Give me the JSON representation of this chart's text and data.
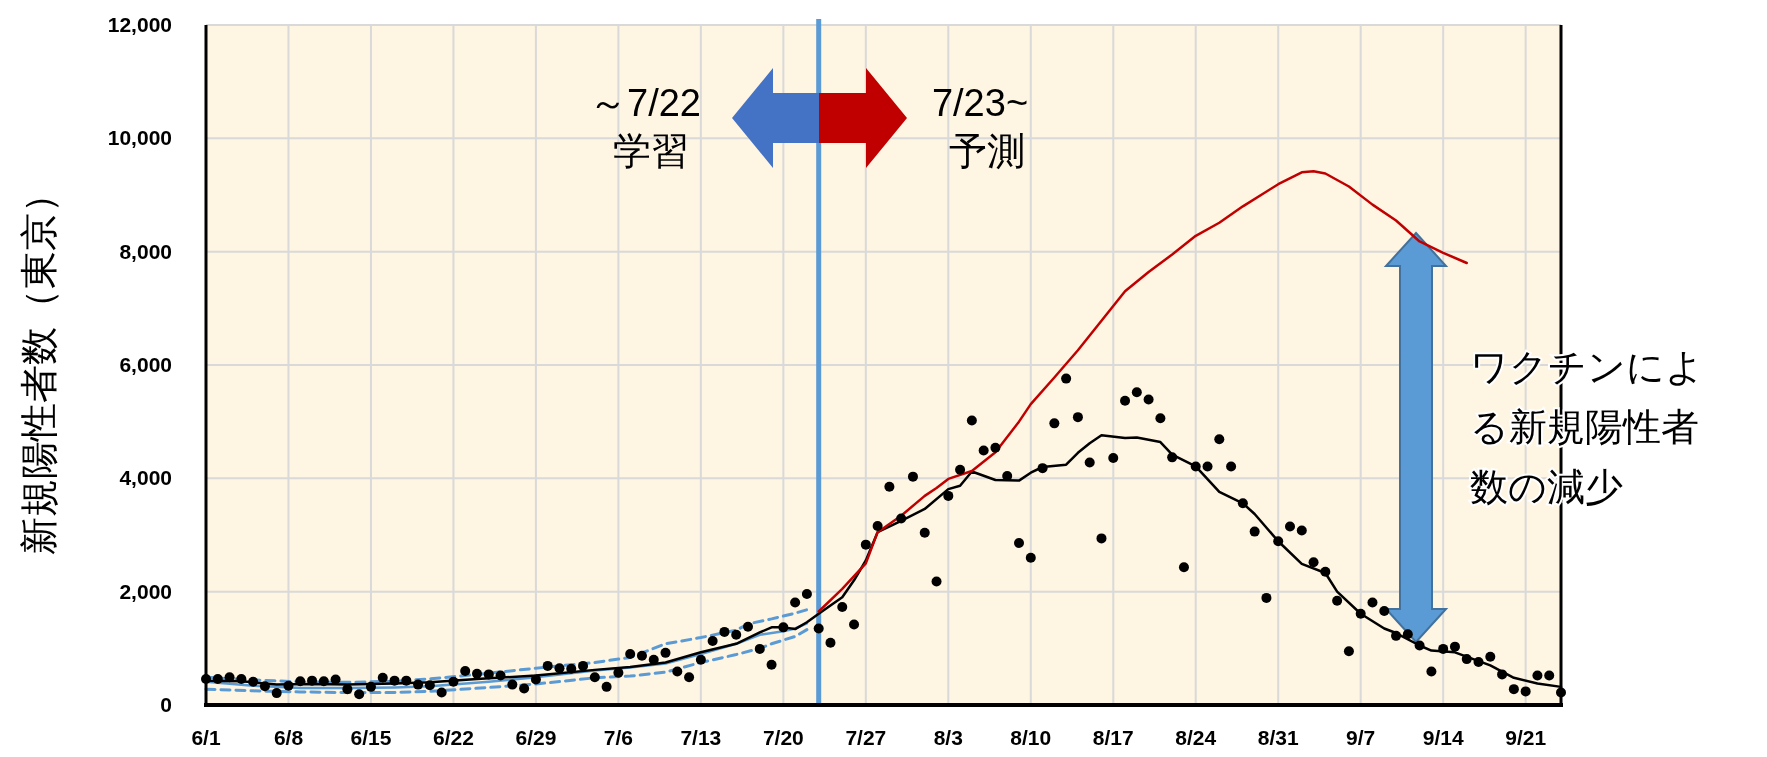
{
  "chart_data": {
    "type": "line",
    "ylabel": "新規陽性者数（東京）",
    "annotations": [
      "～7/22",
      "学習",
      "7/23~",
      "予測",
      "ワクチンによる新規陽性者数の減少"
    ],
    "xlim": [
      "--06-01",
      "--09-24"
    ],
    "xticks": [
      {
        "value": "--06-01",
        "label": "6/1"
      },
      {
        "value": "--06-08",
        "label": "6/8"
      },
      {
        "value": "--06-15",
        "label": "6/15"
      },
      {
        "value": "--06-22",
        "label": "6/22"
      },
      {
        "value": "--06-29",
        "label": "6/29"
      },
      {
        "value": "--07-06",
        "label": "7/6"
      },
      {
        "value": "--07-13",
        "label": "7/13"
      },
      {
        "value": "--07-20",
        "label": "7/20"
      },
      {
        "value": "--07-27",
        "label": "7/27"
      },
      {
        "value": "--08-03",
        "label": "8/3"
      },
      {
        "value": "--08-10",
        "label": "8/10"
      },
      {
        "value": "--08-17",
        "label": "8/17"
      },
      {
        "value": "--08-24",
        "label": "8/24"
      },
      {
        "value": "--08-31",
        "label": "8/31"
      },
      {
        "value": "--09-07",
        "label": "9/7"
      },
      {
        "value": "--09-14",
        "label": "9/14"
      },
      {
        "value": "--09-21",
        "label": "9/21"
      }
    ],
    "ylim": [
      0,
      12000
    ],
    "yticks": [
      0,
      {
        "value": 2000,
        "label": "2,000"
      },
      {
        "value": 4000,
        "label": "4,000"
      },
      {
        "value": 6000,
        "label": "6,000"
      },
      {
        "value": 8000,
        "label": "8,000"
      },
      {
        "value": 10000,
        "label": "10,000"
      },
      {
        "value": 12000,
        "label": "12,000"
      }
    ],
    "grid": true,
    "ref_lines": [
      {
        "axis": "x",
        "value": "--07-23",
        "color": "#5b9bd5"
      }
    ],
    "series": [
      {
        "type": "line",
        "color": "#5b9bd5",
        "line_style": "dashed",
        "marker": "none",
        "x": [
          "--06-01",
          "--06-05",
          "--06-09",
          "--06-13",
          "--06-17",
          "--06-20",
          "--06-25",
          "--06-29",
          "--07-04",
          "--07-07",
          "--07-10",
          "--07-13",
          "--07-16",
          "--07-17",
          "--07-19",
          "--07-21",
          "--07-22"
        ],
        "values": [
          490,
          440,
          410,
          400,
          420,
          460,
          560,
          650,
          750,
          840,
          1080,
          1190,
          1320,
          1430,
          1520,
          1620,
          1680
        ]
      },
      {
        "type": "line",
        "color": "#5b9bd5",
        "line_style": "dashed",
        "marker": "none",
        "x": [
          "--06-01",
          "--06-05",
          "--06-09",
          "--06-13",
          "--06-17",
          "--06-20",
          "--06-25",
          "--06-29",
          "--07-04",
          "--07-07",
          "--07-10",
          "--07-13",
          "--07-16",
          "--07-18",
          "--07-19",
          "--07-21",
          "--07-22"
        ],
        "values": [
          280,
          250,
          230,
          220,
          220,
          240,
          310,
          370,
          480,
          510,
          580,
          750,
          890,
          1000,
          1080,
          1210,
          1330
        ]
      },
      {
        "type": "line",
        "color": "#5b9bd5",
        "line_style": "solid",
        "marker": "none",
        "x": [
          "--06-01",
          "--06-05",
          "--06-09",
          "--06-13",
          "--06-17",
          "--06-20",
          "--06-25",
          "--06-29",
          "--07-04",
          "--07-07",
          "--07-10",
          "--07-13",
          "--07-16",
          "--07-18",
          "--07-20",
          "--07-21",
          "--07-22"
        ],
        "values": [
          410,
          340,
          300,
          300,
          310,
          330,
          410,
          490,
          610,
          660,
          730,
          900,
          1080,
          1240,
          1300,
          1350,
          1440
        ]
      },
      {
        "type": "line",
        "color": "#000000",
        "line_style": "solid",
        "marker": "none",
        "x": [
          "--06-01",
          "--06-04",
          "--06-07",
          "--06-10",
          "--06-13",
          "--06-17",
          "--06-20",
          "--06-24",
          "--06-29",
          "--07-04",
          "--07-07",
          "--07-10",
          "--07-13",
          "--07-16",
          "--07-18",
          "--07-19",
          "--07-20",
          "--07-21",
          "--07-22",
          "--07-23",
          "--07-25",
          "--07-26",
          "--07-27",
          "--07-28",
          "--07-30",
          "--08-01",
          "--08-03",
          "--08-04",
          "--08-05",
          "--08-07",
          "--08-09",
          "--08-10",
          "--08-11",
          "--08-13",
          "--08-14",
          "--08-15",
          "--08-16",
          "--08-18",
          "--08-19",
          "--08-20",
          "--08-21",
          "--08-22",
          "--08-24",
          "--08-26",
          "--08-28",
          "--08-29",
          "--08-31",
          "--09-02",
          "--09-04",
          "--09-05",
          "--09-07",
          "--09-09",
          "--09-10",
          "--09-12",
          "--09-13",
          "--09-15",
          "--09-18",
          "--09-20",
          "--09-22",
          "--09-24"
        ],
        "values": [
          430,
          420,
          360,
          370,
          360,
          380,
          400,
          460,
          520,
          620,
          670,
          750,
          930,
          1080,
          1280,
          1370,
          1370,
          1340,
          1460,
          1610,
          1900,
          2200,
          2550,
          3050,
          3250,
          3460,
          3810,
          3870,
          4120,
          3970,
          3960,
          4100,
          4200,
          4240,
          4450,
          4620,
          4760,
          4710,
          4720,
          4680,
          4640,
          4420,
          4210,
          3760,
          3560,
          3370,
          2890,
          2490,
          2330,
          2000,
          1610,
          1350,
          1270,
          1050,
          960,
          930,
          700,
          480,
          380,
          320
        ]
      },
      {
        "type": "line",
        "color": "#c00000",
        "line_style": "solid",
        "marker": "none",
        "x": [
          "--07-23",
          "--07-25",
          "--07-27",
          "--07-28",
          "--07-30",
          "--08-01",
          "--08-02",
          "--08-03",
          "--08-05",
          "--08-07",
          "--08-09",
          "--08-10",
          "--08-12",
          "--08-14",
          "--08-16",
          "--08-18",
          "--08-20",
          "--08-22",
          "--08-24",
          "--08-26",
          "--08-28",
          "--08-31",
          "--09-02",
          "--09-03",
          "--09-04",
          "--09-06",
          "--09-08",
          "--09-10",
          "--09-12",
          "--09-14",
          "--09-16"
        ],
        "values": [
          1650,
          2050,
          2500,
          3050,
          3340,
          3690,
          3830,
          3990,
          4130,
          4460,
          5000,
          5310,
          5780,
          6260,
          6780,
          7300,
          7640,
          7950,
          8280,
          8510,
          8800,
          9190,
          9400,
          9420,
          9380,
          9150,
          8830,
          8550,
          8180,
          7980,
          7800
        ]
      },
      {
        "type": "scatter",
        "color": "#000000",
        "marker": "circle",
        "x": [
          "--06-01",
          "--06-02",
          "--06-03",
          "--06-04",
          "--06-05",
          "--06-06",
          "--06-07",
          "--06-08",
          "--06-09",
          "--06-10",
          "--06-11",
          "--06-12",
          "--06-13",
          "--06-14",
          "--06-15",
          "--06-16",
          "--06-17",
          "--06-18",
          "--06-19",
          "--06-20",
          "--06-21",
          "--06-22",
          "--06-23",
          "--06-24",
          "--06-25",
          "--06-26",
          "--06-27",
          "--06-28",
          "--06-29",
          "--06-30",
          "--07-01",
          "--07-02",
          "--07-03",
          "--07-04",
          "--07-05",
          "--07-06",
          "--07-07",
          "--07-08",
          "--07-09",
          "--07-10",
          "--07-11",
          "--07-12",
          "--07-13",
          "--07-14",
          "--07-15",
          "--07-16",
          "--07-17",
          "--07-18",
          "--07-19",
          "--07-20",
          "--07-21",
          "--07-22",
          "--07-23",
          "--07-24",
          "--07-25",
          "--07-26",
          "--07-27",
          "--07-28",
          "--07-29",
          "--07-30",
          "--07-31",
          "--08-01",
          "--08-02",
          "--08-03",
          "--08-04",
          "--08-05",
          "--08-06",
          "--08-07",
          "--08-08",
          "--08-09",
          "--08-10",
          "--08-11",
          "--08-12",
          "--08-13",
          "--08-14",
          "--08-15",
          "--08-16",
          "--08-17",
          "--08-18",
          "--08-19",
          "--08-20",
          "--08-21",
          "--08-22",
          "--08-23",
          "--08-24",
          "--08-25",
          "--08-26",
          "--08-27",
          "--08-28",
          "--08-29",
          "--08-30",
          "--08-31",
          "--09-01",
          "--09-02",
          "--09-03",
          "--09-04",
          "--09-05",
          "--09-06",
          "--09-07",
          "--09-08",
          "--09-09",
          "--09-10",
          "--09-11",
          "--09-12",
          "--09-13",
          "--09-14",
          "--09-15",
          "--09-16",
          "--09-17",
          "--09-18",
          "--09-19",
          "--09-20",
          "--09-21",
          "--09-22",
          "--09-23",
          "--09-24"
        ],
        "values": [
          460,
          460,
          490,
          460,
          410,
          330,
          210,
          340,
          420,
          430,
          420,
          450,
          280,
          190,
          320,
          480,
          430,
          430,
          360,
          350,
          220,
          410,
          600,
          550,
          540,
          520,
          360,
          290,
          450,
          690,
          650,
          640,
          690,
          490,
          320,
          570,
          900,
          870,
          800,
          920,
          590,
          490,
          800,
          1130,
          1290,
          1240,
          1380,
          990,
          710,
          1370,
          1810,
          1960,
          1350,
          1100,
          1730,
          1420,
          2830,
          3160,
          3850,
          3290,
          4030,
          3040,
          2180,
          3690,
          4150,
          5020,
          4490,
          4540,
          4040,
          2860,
          2600,
          4180,
          4970,
          5760,
          5080,
          4280,
          2940,
          4360,
          5370,
          5520,
          5390,
          5060,
          4370,
          2430,
          4210,
          4210,
          4690,
          4210,
          3560,
          3060,
          1890,
          2890,
          3150,
          3080,
          2520,
          2350,
          1840,
          950,
          1610,
          1810,
          1660,
          1220,
          1250,
          1050,
          590,
          990,
          1030,
          810,
          760,
          850,
          540,
          280,
          240,
          520,
          520,
          220
        ]
      }
    ]
  }
}
